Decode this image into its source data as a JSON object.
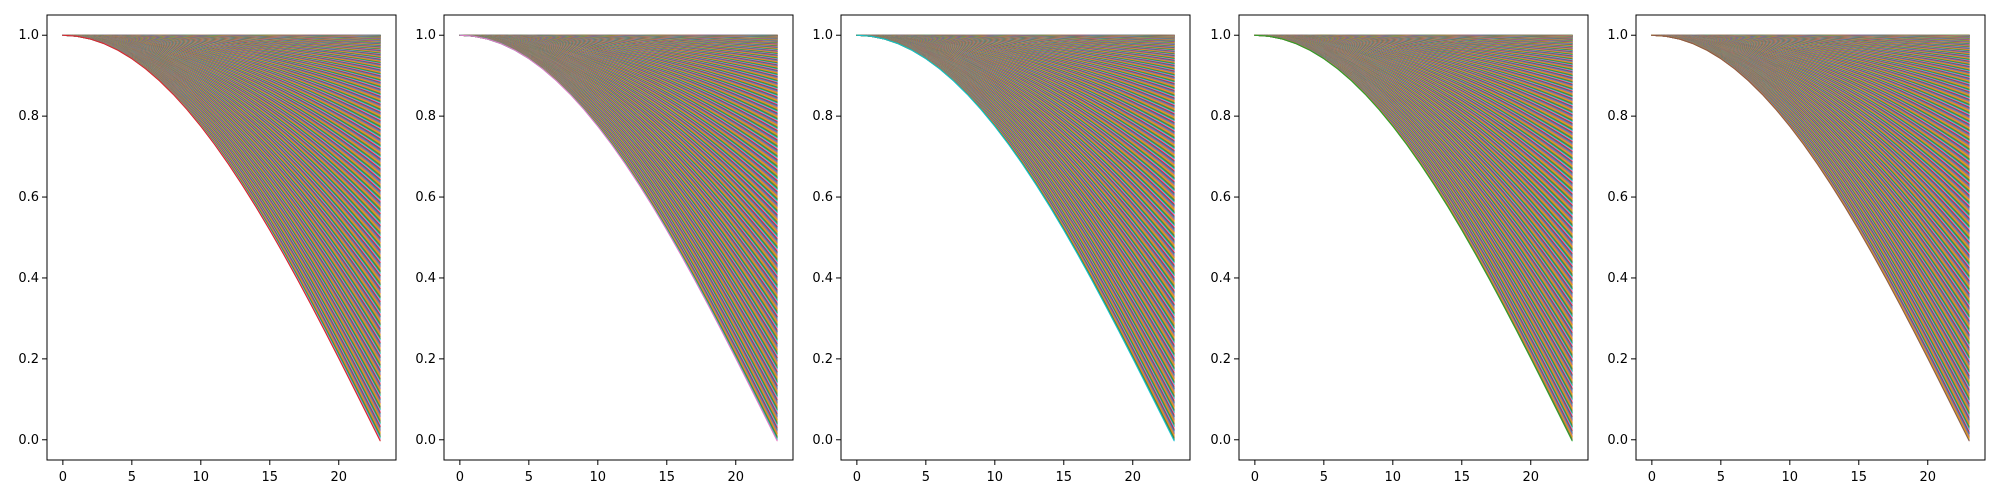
{
  "figure": {
    "panel_count": 5
  },
  "chart_data": [
    {
      "type": "line",
      "title": "",
      "xlabel": "",
      "ylabel": "",
      "xlim": [
        -1.15,
        24.15
      ],
      "ylim": [
        -0.05,
        1.05
      ],
      "xticks": [
        0,
        5,
        10,
        15,
        20
      ],
      "yticks": [
        0.0,
        0.2,
        0.4,
        0.6,
        0.8,
        1.0
      ],
      "xtick_labels": [
        "0",
        "5",
        "10",
        "15",
        "20"
      ],
      "ytick_labels": [
        "0.0",
        "0.2",
        "0.4",
        "0.6",
        "0.8",
        "1.0"
      ],
      "grid": false,
      "legend": "none",
      "x": [
        0,
        1,
        2,
        3,
        4,
        5,
        6,
        7,
        8,
        9,
        10,
        11,
        12,
        13,
        14,
        15,
        16,
        17,
        18,
        19,
        20,
        21,
        22,
        23
      ],
      "series_family": {
        "count": 450,
        "function": "cos(a*x)",
        "a_min": 0.0,
        "a_max": 0.0684,
        "endpoint_min": 0.0,
        "endpoint_max": 1.0
      }
    },
    {
      "type": "line",
      "title": "",
      "xlabel": "",
      "ylabel": "",
      "xlim": [
        -1.15,
        24.15
      ],
      "ylim": [
        -0.05,
        1.05
      ],
      "xticks": [
        0,
        5,
        10,
        15,
        20
      ],
      "yticks": [
        0.0,
        0.2,
        0.4,
        0.6,
        0.8,
        1.0
      ],
      "xtick_labels": [
        "0",
        "5",
        "10",
        "15",
        "20"
      ],
      "ytick_labels": [
        "0.0",
        "0.2",
        "0.4",
        "0.6",
        "0.8",
        "1.0"
      ],
      "grid": false,
      "legend": "none",
      "x": [
        0,
        1,
        2,
        3,
        4,
        5,
        6,
        7,
        8,
        9,
        10,
        11,
        12,
        13,
        14,
        15,
        16,
        17,
        18,
        19,
        20,
        21,
        22,
        23
      ],
      "series_family": {
        "count": 450,
        "function": "cos(a*x)",
        "a_min": 0.0,
        "a_max": 0.0684,
        "endpoint_min": 0.0,
        "endpoint_max": 1.0
      }
    },
    {
      "type": "line",
      "title": "",
      "xlabel": "",
      "ylabel": "",
      "xlim": [
        -1.15,
        24.15
      ],
      "ylim": [
        -0.05,
        1.05
      ],
      "xticks": [
        0,
        5,
        10,
        15,
        20
      ],
      "yticks": [
        0.0,
        0.2,
        0.4,
        0.6,
        0.8,
        1.0
      ],
      "xtick_labels": [
        "0",
        "5",
        "10",
        "15",
        "20"
      ],
      "ytick_labels": [
        "0.0",
        "0.2",
        "0.4",
        "0.6",
        "0.8",
        "1.0"
      ],
      "grid": false,
      "legend": "none",
      "x": [
        0,
        1,
        2,
        3,
        4,
        5,
        6,
        7,
        8,
        9,
        10,
        11,
        12,
        13,
        14,
        15,
        16,
        17,
        18,
        19,
        20,
        21,
        22,
        23
      ],
      "series_family": {
        "count": 450,
        "function": "cos(a*x)",
        "a_min": 0.0,
        "a_max": 0.0684,
        "endpoint_min": 0.0,
        "endpoint_max": 1.0
      }
    },
    {
      "type": "line",
      "title": "",
      "xlabel": "",
      "ylabel": "",
      "xlim": [
        -1.15,
        24.15
      ],
      "ylim": [
        -0.05,
        1.05
      ],
      "xticks": [
        0,
        5,
        10,
        15,
        20
      ],
      "yticks": [
        0.0,
        0.2,
        0.4,
        0.6,
        0.8,
        1.0
      ],
      "xtick_labels": [
        "0",
        "5",
        "10",
        "15",
        "20"
      ],
      "ytick_labels": [
        "0.0",
        "0.2",
        "0.4",
        "0.6",
        "0.8",
        "1.0"
      ],
      "grid": false,
      "legend": "none",
      "x": [
        0,
        1,
        2,
        3,
        4,
        5,
        6,
        7,
        8,
        9,
        10,
        11,
        12,
        13,
        14,
        15,
        16,
        17,
        18,
        19,
        20,
        21,
        22,
        23
      ],
      "series_family": {
        "count": 450,
        "function": "cos(a*x)",
        "a_min": 0.0,
        "a_max": 0.0684,
        "endpoint_min": 0.0,
        "endpoint_max": 1.0
      }
    },
    {
      "type": "line",
      "title": "",
      "xlabel": "",
      "ylabel": "",
      "xlim": [
        -1.15,
        24.15
      ],
      "ylim": [
        -0.05,
        1.05
      ],
      "xticks": [
        0,
        5,
        10,
        15,
        20
      ],
      "yticks": [
        0.0,
        0.2,
        0.4,
        0.6,
        0.8,
        1.0
      ],
      "xtick_labels": [
        "0",
        "5",
        "10",
        "15",
        "20"
      ],
      "ytick_labels": [
        "0.0",
        "0.2",
        "0.4",
        "0.6",
        "0.8",
        "1.0"
      ],
      "grid": false,
      "legend": "none",
      "x": [
        0,
        1,
        2,
        3,
        4,
        5,
        6,
        7,
        8,
        9,
        10,
        11,
        12,
        13,
        14,
        15,
        16,
        17,
        18,
        19,
        20,
        21,
        22,
        23
      ],
      "series_family": {
        "count": 450,
        "function": "cos(a*x)",
        "a_min": 0.0,
        "a_max": 0.0684,
        "endpoint_min": 0.0,
        "endpoint_max": 1.0
      }
    }
  ],
  "palette": [
    "#1f77b4",
    "#ff7f0e",
    "#2ca02c",
    "#d62728",
    "#9467bd",
    "#8c564b",
    "#e377c2",
    "#7f7f7f",
    "#bcbd22",
    "#17becf"
  ]
}
